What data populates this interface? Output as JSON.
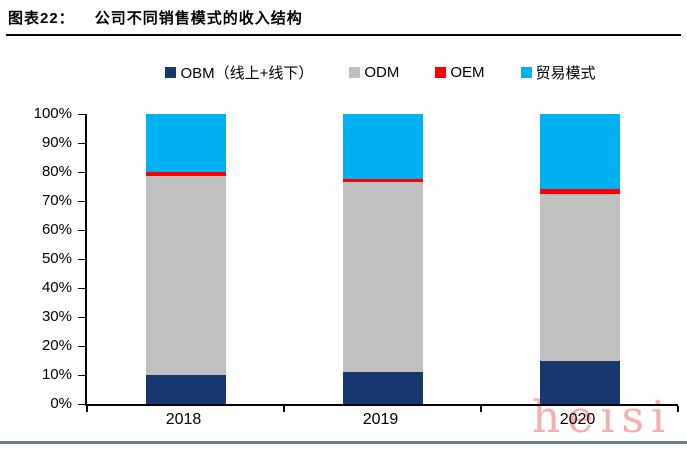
{
  "figure": {
    "title_prefix": "图表22：",
    "title": "公司不同销售模式的收入结构"
  },
  "chart_data": {
    "type": "bar",
    "stacked": true,
    "title": "公司不同销售模式的收入结构",
    "categories": [
      "2018",
      "2019",
      "2020"
    ],
    "series": [
      {
        "id": "obm",
        "name": "OBM（线上+线下）",
        "color": "#16386E",
        "values": [
          10,
          11,
          15
        ]
      },
      {
        "id": "odm",
        "name": "ODM",
        "color": "#C0C0C0",
        "values": [
          68.5,
          65.5,
          57.5
        ]
      },
      {
        "id": "oem",
        "name": "OEM",
        "color": "#FF0000",
        "values": [
          1.5,
          1,
          1.5
        ]
      },
      {
        "id": "trade",
        "name": "贸易模式",
        "color": "#00B0F0",
        "values": [
          20,
          22.5,
          26
        ]
      }
    ],
    "y_axis": {
      "min": 0,
      "max": 100,
      "tick_step": 10,
      "ticks": [
        "0%",
        "10%",
        "20%",
        "30%",
        "40%",
        "50%",
        "60%",
        "70%",
        "80%",
        "90%",
        "100%"
      ]
    },
    "xlabel": "",
    "ylabel": "",
    "grid": false,
    "legend_position": "top"
  },
  "watermark": {
    "text": "heisi",
    "color": "#F4AEB2"
  }
}
